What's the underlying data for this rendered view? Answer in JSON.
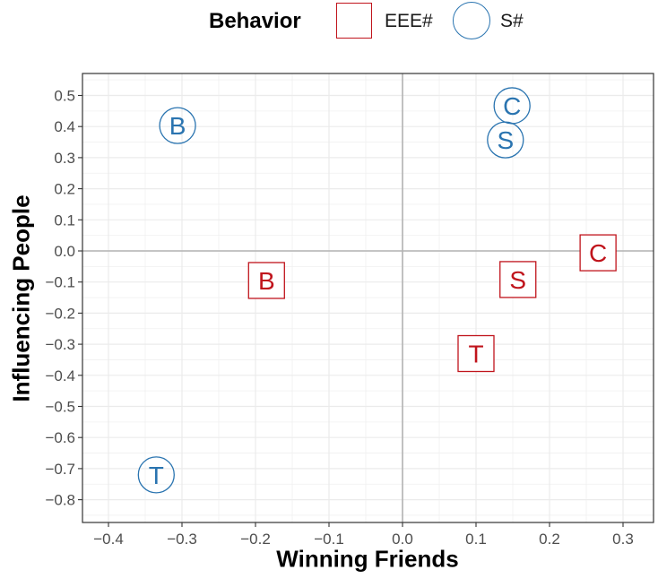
{
  "legend": {
    "title": "Behavior",
    "entries": [
      {
        "label": "EEE#",
        "shape": "square",
        "color": "#c0141c"
      },
      {
        "label": "S#",
        "shape": "circle",
        "color": "#2a74b0"
      }
    ]
  },
  "axes": {
    "xlabel": "Winning Friends",
    "ylabel": "Influencing People",
    "xticks": [
      "−0.4",
      "−0.3",
      "−0.2",
      "−0.1",
      "0.0",
      "0.1",
      "0.2",
      "0.3"
    ],
    "yticks": [
      "0.5",
      "0.4",
      "0.3",
      "0.2",
      "0.1",
      "0.0",
      "−0.1",
      "−0.2",
      "−0.3",
      "−0.4",
      "−0.5",
      "−0.6",
      "−0.7",
      "−0.8"
    ]
  },
  "chart_data": {
    "type": "scatter",
    "title": "",
    "xlabel": "Winning Friends",
    "ylabel": "Influencing People",
    "xlim": [
      -0.43,
      0.34
    ],
    "ylim": [
      -0.87,
      0.55
    ],
    "xticks": [
      -0.4,
      -0.3,
      -0.2,
      -0.1,
      0.0,
      0.1,
      0.2,
      0.3
    ],
    "yticks": [
      0.5,
      0.4,
      0.3,
      0.2,
      0.1,
      0.0,
      -0.1,
      -0.2,
      -0.3,
      -0.4,
      -0.5,
      -0.6,
      -0.7,
      -0.8
    ],
    "grid": true,
    "reference_lines": {
      "x": 0.0,
      "y": 0.0
    },
    "legend_title": "Behavior",
    "legend_position": "top",
    "series": [
      {
        "name": "EEE#",
        "marker": "square-label",
        "color": "#c0141c",
        "points": [
          {
            "label": "B",
            "x": -0.185,
            "y": -0.095
          },
          {
            "label": "S",
            "x": 0.157,
            "y": -0.092
          },
          {
            "label": "C",
            "x": 0.266,
            "y": -0.006
          },
          {
            "label": "T",
            "x": 0.1,
            "y": -0.33
          }
        ]
      },
      {
        "name": "S#",
        "marker": "circle-label",
        "color": "#2a74b0",
        "points": [
          {
            "label": "B",
            "x": -0.306,
            "y": 0.403
          },
          {
            "label": "C",
            "x": 0.149,
            "y": 0.467
          },
          {
            "label": "S",
            "x": 0.14,
            "y": 0.357
          },
          {
            "label": "T",
            "x": -0.335,
            "y": -0.72
          }
        ]
      }
    ]
  }
}
